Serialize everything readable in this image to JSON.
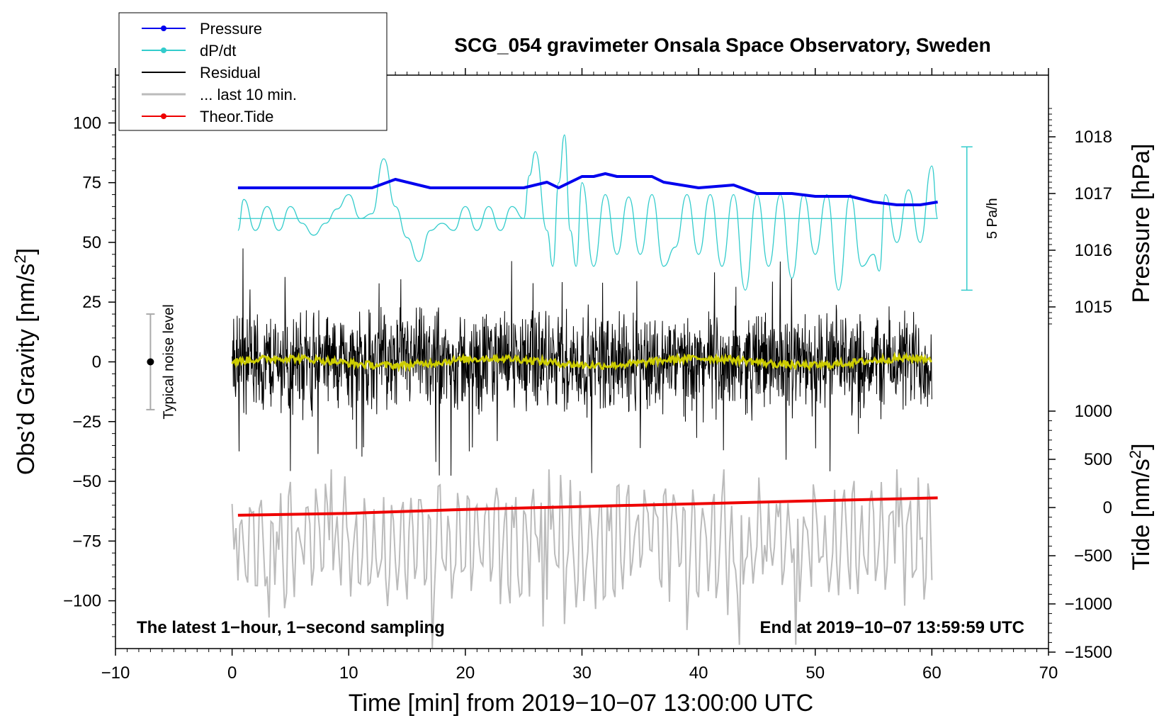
{
  "chart_data": {
    "type": "line",
    "title": "SCG_054 gravimeter Onsala Space Observatory, Sweden",
    "xlabel": "Time [min] from 2019−10−07 13:00:00 UTC",
    "ylabel_left": "Obs’d Gravity [nm/s",
    "ylabel_left_sup": "2",
    "ylabel_left_end": "]",
    "ylabel_right_pressure": "Pressure [hPa]",
    "ylabel_right_tide": "Tide [nm/s",
    "ylabel_right_tide_sup": "2",
    "ylabel_right_tide_end": "]",
    "xlim": [
      -10,
      70
    ],
    "ylim_left": [
      -120,
      120
    ],
    "xticks": [
      {
        "value": -10,
        "label": "−10"
      },
      {
        "value": 0,
        "label": "0"
      },
      {
        "value": 10,
        "label": "10"
      },
      {
        "value": 20,
        "label": "20"
      },
      {
        "value": 30,
        "label": "30"
      },
      {
        "value": 40,
        "label": "40"
      },
      {
        "value": 50,
        "label": "50"
      },
      {
        "value": 60,
        "label": "60"
      },
      {
        "value": 70,
        "label": "70"
      }
    ],
    "yticks_left": [
      {
        "value": 100,
        "label": "100"
      },
      {
        "value": 75,
        "label": "75"
      },
      {
        "value": 50,
        "label": "50"
      },
      {
        "value": 25,
        "label": "25"
      },
      {
        "value": 0,
        "label": "0"
      },
      {
        "value": -25,
        "label": "−25"
      },
      {
        "value": -50,
        "label": "−50"
      },
      {
        "value": -75,
        "label": "−75"
      },
      {
        "value": -100,
        "label": "−100"
      }
    ],
    "pressure_axis": {
      "range": [
        1014.5,
        1018.5
      ],
      "ticks": [
        {
          "value": 1018,
          "label": "1018"
        },
        {
          "value": 1017,
          "label": "1017"
        },
        {
          "value": 1016,
          "label": "1016"
        },
        {
          "value": 1015,
          "label": "1015"
        }
      ]
    },
    "tide_axis": {
      "range": [
        -1500,
        1000
      ],
      "ticks": [
        {
          "value": 1000,
          "label": "1000"
        },
        {
          "value": 500,
          "label": "500"
        },
        {
          "value": 0,
          "label": "0"
        },
        {
          "value": -500,
          "label": "−500"
        },
        {
          "value": -1000,
          "label": "−1000"
        },
        {
          "value": -1500,
          "label": "−1500"
        }
      ]
    },
    "series": [
      {
        "name": "Pressure",
        "axis": "pressure",
        "color": "#0000ee",
        "x": [
          0.5,
          5,
          10,
          12,
          14,
          17,
          20,
          25,
          27,
          28,
          30,
          31,
          32,
          33,
          35,
          36,
          37,
          40,
          43,
          45,
          48,
          50,
          53,
          55,
          57,
          59,
          60.5
        ],
        "values": [
          1017.1,
          1017.1,
          1017.1,
          1017.1,
          1017.25,
          1017.1,
          1017.1,
          1017.1,
          1017.2,
          1017.1,
          1017.3,
          1017.3,
          1017.35,
          1017.3,
          1017.3,
          1017.3,
          1017.2,
          1017.1,
          1017.15,
          1017.0,
          1017.0,
          1016.95,
          1016.95,
          1016.85,
          1016.8,
          1016.8,
          1016.85
        ]
      },
      {
        "name": "dP/dt",
        "color": "#33cccc",
        "baseline": 60,
        "x": [
          0.5,
          1,
          2,
          3,
          4,
          5,
          6,
          7,
          8,
          9,
          10,
          11,
          12,
          13,
          14,
          15,
          16,
          17,
          18,
          19,
          20,
          21,
          22,
          23,
          24,
          25,
          25.5,
          26,
          27,
          27.5,
          28,
          28.5,
          29,
          29.5,
          30,
          31,
          32,
          33,
          34,
          35,
          36,
          37,
          38,
          39,
          40,
          41,
          42,
          43,
          44,
          45,
          46,
          47,
          48,
          49,
          50,
          51,
          52,
          53,
          54,
          55,
          55.5,
          56,
          57,
          58,
          59,
          60,
          60.5
        ],
        "values": [
          55,
          68,
          55,
          65,
          55,
          65,
          58,
          53,
          58,
          64,
          70,
          60,
          62,
          85,
          65,
          52,
          42,
          55,
          58,
          55,
          65,
          55,
          65,
          55,
          65,
          60,
          78,
          88,
          55,
          40,
          75,
          95,
          55,
          40,
          75,
          40,
          70,
          45,
          69,
          45,
          70,
          40,
          48,
          70,
          45,
          70,
          40,
          70,
          30,
          70,
          40,
          70,
          35,
          70,
          45,
          70,
          30,
          70,
          40,
          45,
          38,
          70,
          50,
          72,
          50,
          82,
          60
        ]
      },
      {
        "name": "Residual",
        "color": "#000000",
        "typical_amplitude": 20,
        "extreme_range": [
          -48,
          48
        ]
      },
      {
        "name": "... last 10 min.",
        "color": "#bbbbbb",
        "center": -75,
        "typical_amplitude": 20,
        "extreme_range": [
          -120,
          -45
        ]
      },
      {
        "name": "Theor.Tide",
        "axis": "tide",
        "color": "#ee0000",
        "x": [
          0.5,
          10,
          20,
          30,
          40,
          50,
          60.5
        ],
        "values": [
          -80,
          -60,
          -20,
          10,
          40,
          70,
          100
        ]
      },
      {
        "name": "Smoothed residual",
        "color": "#cccc00",
        "x_range": [
          0,
          60
        ],
        "approx_level": 0
      }
    ],
    "legend": [
      {
        "label": "Pressure",
        "color": "#0000ee",
        "marker": true
      },
      {
        "label": "dP/dt",
        "color": "#33cccc",
        "marker": true
      },
      {
        "label": "Residual",
        "color": "#000000",
        "marker": false
      },
      {
        "label": "... last 10 min.",
        "color": "#bbbbbb",
        "marker": false
      },
      {
        "label": "Theor.Tide",
        "color": "#ee0000",
        "marker": true
      }
    ],
    "annotations": {
      "noise_label": "Typical noise level",
      "noise_bar": {
        "x": -7,
        "center": 0,
        "half": 20
      },
      "rate_label": "5 Pa/h",
      "rate_bar": {
        "x": 63,
        "top": 90,
        "bottom": 30
      },
      "note_left": "The latest 1−hour, 1−second sampling",
      "note_right": "End at 2019−10−07 13:59:59 UTC"
    }
  }
}
